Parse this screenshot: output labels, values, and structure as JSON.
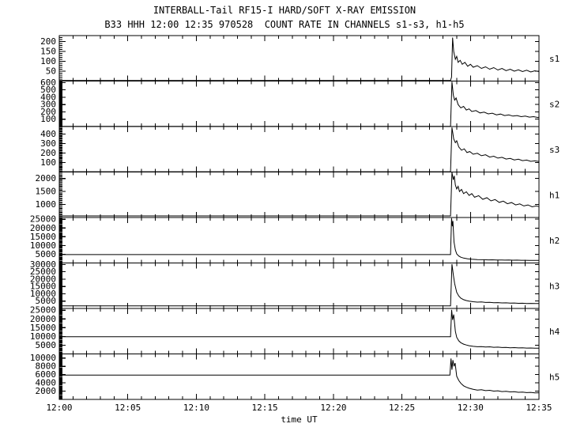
{
  "chart_data": {
    "type": "line",
    "title": "INTERBALL-Tail RF15-I HARD/SOFT X-RAY EMISSION",
    "subtitle": "B33 HHH 12:00 12:35 970528  COUNT RATE IN CHANNELS s1-s3, h1-h5",
    "xlabel": "time UT",
    "x_ticks": [
      "12:00",
      "12:05",
      "12:10",
      "12:15",
      "12:20",
      "12:25",
      "12:30",
      "12:35"
    ],
    "x_range_minutes": [
      0,
      35
    ],
    "x_minor_step_minutes": 1,
    "x_major_step_minutes": 5,
    "legend": "none",
    "grid": false,
    "line_color": "#000000",
    "panels": [
      {
        "label": "s1",
        "ylim": [
          0,
          230
        ],
        "yticks": [
          50,
          100,
          150,
          200
        ],
        "yminor": 10,
        "points": [
          [
            0,
            3
          ],
          [
            28.55,
            3
          ],
          [
            28.62,
            20
          ],
          [
            28.7,
            220
          ],
          [
            28.78,
            150
          ],
          [
            28.9,
            110
          ],
          [
            29.0,
            125
          ],
          [
            29.1,
            95
          ],
          [
            29.25,
            105
          ],
          [
            29.4,
            85
          ],
          [
            29.6,
            95
          ],
          [
            29.8,
            75
          ],
          [
            30.0,
            85
          ],
          [
            30.2,
            70
          ],
          [
            30.5,
            78
          ],
          [
            30.8,
            64
          ],
          [
            31.1,
            72
          ],
          [
            31.4,
            60
          ],
          [
            31.7,
            68
          ],
          [
            32.0,
            56
          ],
          [
            32.3,
            64
          ],
          [
            32.6,
            53
          ],
          [
            32.9,
            60
          ],
          [
            33.2,
            50
          ],
          [
            33.5,
            57
          ],
          [
            33.8,
            48
          ],
          [
            34.1,
            55
          ],
          [
            34.4,
            46
          ],
          [
            34.7,
            52
          ],
          [
            35,
            48
          ]
        ]
      },
      {
        "label": "s2",
        "ylim": [
          0,
          620
        ],
        "yticks": [
          100,
          200,
          300,
          400,
          500,
          600
        ],
        "yminor": 10,
        "points": [
          [
            0,
            3
          ],
          [
            28.55,
            3
          ],
          [
            28.65,
            610
          ],
          [
            28.75,
            430
          ],
          [
            28.85,
            360
          ],
          [
            28.95,
            390
          ],
          [
            29.1,
            300
          ],
          [
            29.3,
            255
          ],
          [
            29.5,
            275
          ],
          [
            29.7,
            225
          ],
          [
            29.9,
            240
          ],
          [
            30.1,
            205
          ],
          [
            30.4,
            218
          ],
          [
            30.7,
            185
          ],
          [
            31.0,
            196
          ],
          [
            31.3,
            172
          ],
          [
            31.6,
            182
          ],
          [
            31.9,
            160
          ],
          [
            32.2,
            170
          ],
          [
            32.5,
            150
          ],
          [
            32.8,
            158
          ],
          [
            33.1,
            142
          ],
          [
            33.4,
            150
          ],
          [
            33.7,
            135
          ],
          [
            34.0,
            142
          ],
          [
            34.3,
            128
          ],
          [
            34.6,
            135
          ],
          [
            34.9,
            124
          ],
          [
            35,
            126
          ]
        ]
      },
      {
        "label": "s3",
        "ylim": [
          0,
          480
        ],
        "yticks": [
          100,
          200,
          300,
          400
        ],
        "yminor": 10,
        "points": [
          [
            0,
            3
          ],
          [
            28.55,
            3
          ],
          [
            28.65,
            470
          ],
          [
            28.78,
            350
          ],
          [
            28.9,
            310
          ],
          [
            29.0,
            330
          ],
          [
            29.15,
            265
          ],
          [
            29.35,
            230
          ],
          [
            29.55,
            245
          ],
          [
            29.75,
            205
          ],
          [
            29.95,
            216
          ],
          [
            30.2,
            188
          ],
          [
            30.5,
            198
          ],
          [
            30.8,
            172
          ],
          [
            31.1,
            182
          ],
          [
            31.4,
            158
          ],
          [
            31.7,
            167
          ],
          [
            32.0,
            147
          ],
          [
            32.3,
            155
          ],
          [
            32.6,
            137
          ],
          [
            32.9,
            144
          ],
          [
            33.2,
            128
          ],
          [
            33.5,
            135
          ],
          [
            33.8,
            120
          ],
          [
            34.1,
            126
          ],
          [
            34.4,
            113
          ],
          [
            34.7,
            118
          ],
          [
            35,
            112
          ]
        ]
      },
      {
        "label": "h1",
        "ylim": [
          500,
          2250
        ],
        "yticks": [
          1000,
          1500,
          2000
        ],
        "yminor": 50,
        "points": [
          [
            0,
            560
          ],
          [
            28.55,
            560
          ],
          [
            28.65,
            2240
          ],
          [
            28.75,
            1950
          ],
          [
            28.82,
            2100
          ],
          [
            28.9,
            1750
          ],
          [
            29.0,
            1600
          ],
          [
            29.1,
            1700
          ],
          [
            29.2,
            1500
          ],
          [
            29.35,
            1580
          ],
          [
            29.5,
            1420
          ],
          [
            29.7,
            1490
          ],
          [
            29.9,
            1350
          ],
          [
            30.1,
            1420
          ],
          [
            30.3,
            1280
          ],
          [
            30.6,
            1340
          ],
          [
            30.9,
            1200
          ],
          [
            31.2,
            1260
          ],
          [
            31.5,
            1140
          ],
          [
            31.8,
            1190
          ],
          [
            32.1,
            1080
          ],
          [
            32.4,
            1130
          ],
          [
            32.7,
            1030
          ],
          [
            33.0,
            1075
          ],
          [
            33.3,
            985
          ],
          [
            33.6,
            1025
          ],
          [
            33.9,
            945
          ],
          [
            34.2,
            985
          ],
          [
            34.5,
            910
          ],
          [
            34.8,
            945
          ],
          [
            35,
            920
          ]
        ]
      },
      {
        "label": "h2",
        "ylim": [
          0,
          26000
        ],
        "yticks": [
          5000,
          10000,
          15000,
          20000,
          25000
        ],
        "yminor": 500,
        "points": [
          [
            0,
            4800
          ],
          [
            28.55,
            4800
          ],
          [
            28.62,
            25600
          ],
          [
            28.68,
            21000
          ],
          [
            28.72,
            24000
          ],
          [
            28.8,
            12000
          ],
          [
            28.9,
            7500
          ],
          [
            29.0,
            5200
          ],
          [
            29.15,
            4000
          ],
          [
            29.3,
            3300
          ],
          [
            29.5,
            2800
          ],
          [
            29.8,
            2400
          ],
          [
            30.1,
            2150
          ],
          [
            30.5,
            1950
          ],
          [
            31.0,
            1850
          ],
          [
            31.3,
            1750
          ],
          [
            31.6,
            1800
          ],
          [
            31.9,
            1680
          ],
          [
            32.2,
            1730
          ],
          [
            32.5,
            1620
          ],
          [
            32.8,
            1670
          ],
          [
            33.1,
            1570
          ],
          [
            33.4,
            1610
          ],
          [
            33.7,
            1520
          ],
          [
            34.0,
            1560
          ],
          [
            34.3,
            1480
          ],
          [
            34.6,
            1510
          ],
          [
            34.9,
            1440
          ],
          [
            35,
            1450
          ]
        ]
      },
      {
        "label": "h3",
        "ylim": [
          0,
          31000
        ],
        "yticks": [
          5000,
          10000,
          15000,
          20000,
          25000,
          30000
        ],
        "yminor": 500,
        "points": [
          [
            0,
            1800
          ],
          [
            28.55,
            1800
          ],
          [
            28.65,
            30200
          ],
          [
            28.75,
            23000
          ],
          [
            28.85,
            17000
          ],
          [
            29.0,
            11000
          ],
          [
            29.15,
            8500
          ],
          [
            29.3,
            7000
          ],
          [
            29.5,
            6000
          ],
          [
            29.7,
            5400
          ],
          [
            29.9,
            5000
          ],
          [
            30.2,
            4600
          ],
          [
            30.5,
            4300
          ],
          [
            30.8,
            4450
          ],
          [
            31.1,
            4100
          ],
          [
            31.4,
            4200
          ],
          [
            31.7,
            3900
          ],
          [
            32.0,
            4000
          ],
          [
            32.3,
            3750
          ],
          [
            32.6,
            3850
          ],
          [
            32.9,
            3620
          ],
          [
            33.2,
            3700
          ],
          [
            33.5,
            3500
          ],
          [
            33.8,
            3580
          ],
          [
            34.1,
            3400
          ],
          [
            34.4,
            3470
          ],
          [
            34.7,
            3320
          ],
          [
            35,
            3360
          ]
        ]
      },
      {
        "label": "h4",
        "ylim": [
          0,
          26000
        ],
        "yticks": [
          5000,
          10000,
          15000,
          20000,
          25000
        ],
        "yminor": 500,
        "points": [
          [
            0,
            9800
          ],
          [
            28.55,
            9800
          ],
          [
            28.63,
            25200
          ],
          [
            28.7,
            19500
          ],
          [
            28.78,
            22500
          ],
          [
            28.9,
            13000
          ],
          [
            29.0,
            9500
          ],
          [
            29.15,
            7500
          ],
          [
            29.3,
            6400
          ],
          [
            29.5,
            5600
          ],
          [
            29.7,
            5100
          ],
          [
            29.9,
            4700
          ],
          [
            30.2,
            4350
          ],
          [
            30.5,
            4100
          ],
          [
            30.8,
            4220
          ],
          [
            31.1,
            3950
          ],
          [
            31.4,
            4050
          ],
          [
            31.7,
            3800
          ],
          [
            32.0,
            3890
          ],
          [
            32.3,
            3660
          ],
          [
            32.6,
            3740
          ],
          [
            32.9,
            3540
          ],
          [
            33.2,
            3610
          ],
          [
            33.5,
            3430
          ],
          [
            33.8,
            3490
          ],
          [
            34.1,
            3330
          ],
          [
            34.4,
            3390
          ],
          [
            34.7,
            3240
          ],
          [
            35,
            3280
          ]
        ]
      },
      {
        "label": "h5",
        "ylim": [
          0,
          11000
        ],
        "yticks": [
          2000,
          4000,
          6000,
          8000,
          10000
        ],
        "yminor": 200,
        "points": [
          [
            0,
            5900
          ],
          [
            28.5,
            5900
          ],
          [
            28.58,
            9900
          ],
          [
            28.65,
            7200
          ],
          [
            28.72,
            9500
          ],
          [
            28.8,
            8000
          ],
          [
            28.88,
            8800
          ],
          [
            29.0,
            5600
          ],
          [
            29.15,
            4600
          ],
          [
            29.3,
            3900
          ],
          [
            29.5,
            3300
          ],
          [
            29.7,
            2950
          ],
          [
            29.9,
            2700
          ],
          [
            30.2,
            2450
          ],
          [
            30.5,
            2250
          ],
          [
            30.8,
            2330
          ],
          [
            31.1,
            2120
          ],
          [
            31.4,
            2200
          ],
          [
            31.7,
            2000
          ],
          [
            32.0,
            2080
          ],
          [
            32.3,
            1900
          ],
          [
            32.6,
            1960
          ],
          [
            32.9,
            1810
          ],
          [
            33.2,
            1870
          ],
          [
            33.5,
            1730
          ],
          [
            33.8,
            1780
          ],
          [
            34.1,
            1650
          ],
          [
            34.4,
            1700
          ],
          [
            34.7,
            1580
          ],
          [
            35,
            1600
          ]
        ]
      }
    ]
  }
}
